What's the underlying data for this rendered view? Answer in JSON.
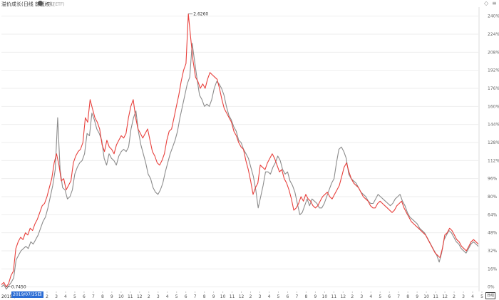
{
  "header": {
    "title": "溢价成长(日线 前复权)",
    "subtitle": "(中证ETF)",
    "diamond_glyph": "◇",
    "menu_glyph": "≡"
  },
  "footer": {
    "left_year": "2019年",
    "selected_date": "2019/07/25四",
    "unit_label": "日线"
  },
  "colors": {
    "series_red": "#e8403c",
    "series_gray": "#8c8c8c",
    "grid": "#eeeeee",
    "date_box": "#2b6cd4"
  },
  "chart_data": {
    "type": "line",
    "y_ticks": [
      "0%",
      "16%",
      "32%",
      "48%",
      "64%",
      "80%",
      "96%",
      "112%",
      "128%",
      "144%",
      "160%",
      "176%",
      "192%",
      "208%",
      "224%",
      "240%"
    ],
    "x_ticks": [
      "2",
      "3",
      "4",
      "5",
      "6",
      "7",
      "8",
      "9",
      "10",
      "11",
      "12",
      "2",
      "3",
      "4",
      "5",
      "6",
      "7",
      "8",
      "9",
      "10",
      "11",
      "12",
      "2",
      "3",
      "4",
      "5",
      "6",
      "7",
      "8",
      "9",
      "10",
      "11",
      "12",
      "2",
      "3",
      "4",
      "5",
      "6",
      "7",
      "8",
      "9",
      "10",
      "11",
      "12",
      "2",
      "3",
      "4",
      "5"
    ],
    "ylim": [
      -4,
      248
    ],
    "annotations": [
      {
        "text": "2.6260",
        "series": 0,
        "index": 78
      },
      {
        "text": "0.7450",
        "series": 0,
        "index": 2
      }
    ],
    "series": [
      {
        "color": "#e8403c",
        "values": [
          2,
          4,
          0,
          3,
          10,
          14,
          34,
          40,
          44,
          42,
          48,
          46,
          52,
          50,
          56,
          60,
          66,
          72,
          74,
          80,
          88,
          96,
          110,
          118,
          108,
          94,
          96,
          86,
          90,
          94,
          110,
          116,
          120,
          122,
          128,
          150,
          146,
          166,
          158,
          150,
          146,
          140,
          126,
          120,
          130,
          124,
          122,
          118,
          126,
          130,
          134,
          132,
          136,
          150,
          160,
          166,
          150,
          140,
          136,
          132,
          136,
          140,
          130,
          120,
          116,
          110,
          108,
          112,
          118,
          130,
          138,
          140,
          150,
          160,
          170,
          182,
          192,
          198,
          242,
          220,
          200,
          186,
          182,
          176,
          180,
          176,
          184,
          190,
          188,
          186,
          184,
          176,
          166,
          158,
          154,
          150,
          146,
          138,
          134,
          128,
          124,
          122,
          112,
          104,
          94,
          82,
          88,
          92,
          108,
          106,
          104,
          110,
          114,
          118,
          114,
          108,
          102,
          104,
          96,
          92,
          86,
          78,
          68,
          70,
          74,
          80,
          76,
          82,
          78,
          76,
          72,
          70,
          72,
          76,
          80,
          82,
          84,
          80,
          78,
          82,
          86,
          90,
          98,
          106,
          110,
          102,
          96,
          92,
          90,
          88,
          84,
          80,
          78,
          76,
          72,
          70,
          70,
          74,
          76,
          74,
          72,
          70,
          68,
          66,
          68,
          72,
          74,
          76,
          70,
          66,
          62,
          58,
          56,
          54,
          52,
          50,
          48,
          46,
          42,
          38,
          34,
          30,
          28,
          26,
          34,
          46,
          48,
          52,
          50,
          46,
          42,
          40,
          36,
          34,
          32,
          36,
          40,
          42,
          40,
          38
        ]
      },
      {
        "color": "#8c8c8c",
        "values": [
          0,
          2,
          -2,
          1,
          4,
          8,
          24,
          28,
          32,
          34,
          36,
          34,
          40,
          38,
          42,
          46,
          52,
          58,
          62,
          70,
          80,
          90,
          104,
          150,
          104,
          88,
          86,
          78,
          80,
          86,
          100,
          106,
          110,
          112,
          118,
          136,
          134,
          154,
          148,
          140,
          136,
          130,
          114,
          108,
          118,
          114,
          112,
          108,
          116,
          120,
          122,
          120,
          124,
          140,
          150,
          156,
          138,
          126,
          118,
          110,
          100,
          96,
          88,
          84,
          82,
          86,
          92,
          102,
          110,
          118,
          124,
          130,
          138,
          150,
          160,
          170,
          180,
          186,
          216,
          200,
          184,
          170,
          166,
          160,
          162,
          160,
          166,
          176,
          182,
          180,
          176,
          170,
          160,
          152,
          148,
          142,
          138,
          130,
          128,
          122,
          118,
          114,
          106,
          98,
          86,
          70,
          80,
          90,
          102,
          102,
          100,
          106,
          110,
          116,
          112,
          104,
          100,
          102,
          94,
          90,
          84,
          74,
          64,
          66,
          72,
          78,
          72,
          78,
          76,
          74,
          70,
          70,
          74,
          80,
          86,
          92,
          96,
          110,
          122,
          124,
          120,
          114,
          100,
          96,
          94,
          92,
          88,
          84,
          82,
          80,
          76,
          74,
          74,
          78,
          82,
          80,
          78,
          76,
          74,
          72,
          74,
          78,
          80,
          82,
          76,
          72,
          66,
          62,
          60,
          58,
          56,
          52,
          50,
          48,
          44,
          40,
          36,
          32,
          28,
          22,
          30,
          42,
          46,
          50,
          48,
          44,
          40,
          38,
          34,
          32,
          30,
          34,
          38,
          40,
          38,
          36
        ]
      }
    ]
  }
}
